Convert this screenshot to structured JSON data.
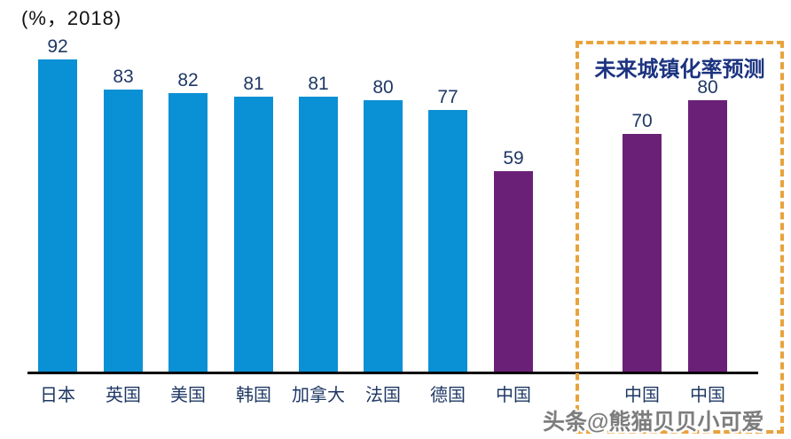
{
  "title": "(%，2018)",
  "chart_data": {
    "type": "bar",
    "title": "(%，2018)",
    "categories": [
      "日本",
      "英国",
      "美国",
      "韩国",
      "加拿大",
      "法国",
      "德国",
      "中国",
      "中国",
      "中国"
    ],
    "values": [
      92,
      83,
      82,
      81,
      81,
      80,
      77,
      59,
      70,
      80
    ],
    "bar_color_keys": [
      "blue",
      "blue",
      "blue",
      "blue",
      "blue",
      "blue",
      "blue",
      "purple",
      "purple",
      "purple"
    ],
    "forecast_group": {
      "label": "未来城镇化率预测",
      "indices": [
        8,
        9
      ]
    },
    "xlabel": "",
    "ylabel": "",
    "ylim": [
      0,
      100
    ],
    "grid": false,
    "legend": "none"
  },
  "colors": {
    "bar_blue": "#0A90D4",
    "bar_purple": "#6B2077",
    "label_navy": "#1F3864",
    "forecast_border": "#E8A33D",
    "forecast_title_blue": "#1C3480",
    "axis_black": "#000000"
  },
  "forecast": {
    "label": "未来城镇化率预测"
  },
  "watermark": {
    "text": "头条@熊猫贝贝小可爱"
  }
}
